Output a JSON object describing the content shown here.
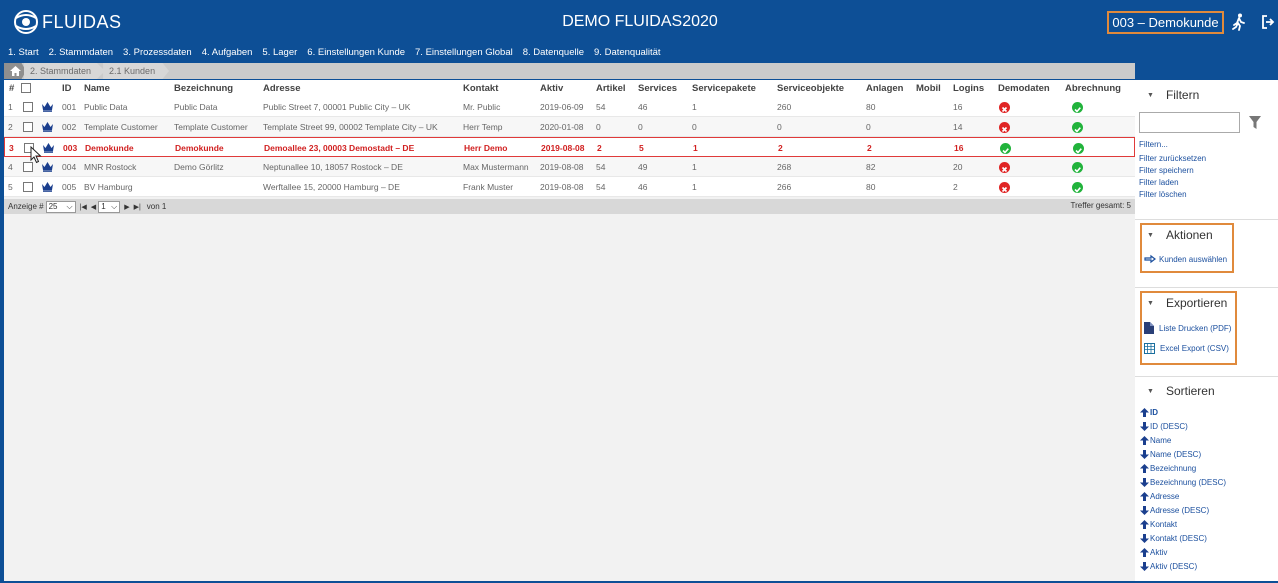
{
  "header": {
    "logo_text": "FLUIDAS",
    "title": "DEMO FLUIDAS2020",
    "customer": "003 – Demokunde"
  },
  "nav": [
    "1. Start",
    "2. Stammdaten",
    "3. Prozessdaten",
    "4. Aufgaben",
    "5. Lager",
    "6. Einstellungen Kunde",
    "7. Einstellungen Global",
    "8. Datenquelle",
    "9. Datenqualität"
  ],
  "breadcrumb": [
    "2. Stammdaten",
    "2.1 Kunden"
  ],
  "table": {
    "columns": [
      "#",
      "ID",
      "Name",
      "Bezeichnung",
      "Adresse",
      "Kontakt",
      "Aktiv",
      "Artikel",
      "Services",
      "Servicepakete",
      "Serviceobjekte",
      "Anlagen",
      "Mobil",
      "Logins",
      "Demodaten",
      "Abrechnung"
    ],
    "rows": [
      {
        "n": "1",
        "id": "001",
        "name": "Public Data",
        "bez": "Public Data",
        "adr": "Public Street 7, 00001 Public City – UK",
        "kontakt": "Mr. Public",
        "aktiv": "2019-06-09",
        "artikel": "54",
        "services": "46",
        "sp": "1",
        "so": "260",
        "anlagen": "80",
        "mobil": "",
        "logins": "16",
        "demo": "no",
        "abr": "yes"
      },
      {
        "n": "2",
        "id": "002",
        "name": "Template Customer",
        "bez": "Template Customer",
        "adr": "Template Street 99, 00002 Template City – UK",
        "kontakt": "Herr Temp",
        "aktiv": "2020-01-08",
        "artikel": "0",
        "services": "0",
        "sp": "0",
        "so": "0",
        "anlagen": "0",
        "mobil": "",
        "logins": "14",
        "demo": "no",
        "abr": "yes"
      },
      {
        "n": "3",
        "id": "003",
        "name": "Demokunde",
        "bez": "Demokunde",
        "adr": "Demoallee 23, 00003 Demostadt – DE",
        "kontakt": "Herr Demo",
        "aktiv": "2019-08-08",
        "artikel": "2",
        "services": "5",
        "sp": "1",
        "so": "2",
        "anlagen": "2",
        "mobil": "",
        "logins": "16",
        "demo": "yes",
        "abr": "yes"
      },
      {
        "n": "4",
        "id": "004",
        "name": "MNR Rostock",
        "bez": "Demo Görlitz",
        "adr": "Neptunallee 10, 18057 Rostock – DE",
        "kontakt": "Max Mustermann",
        "aktiv": "2019-08-08",
        "artikel": "54",
        "services": "49",
        "sp": "1",
        "so": "268",
        "anlagen": "82",
        "mobil": "",
        "logins": "20",
        "demo": "no",
        "abr": "yes"
      },
      {
        "n": "5",
        "id": "005",
        "name": "BV Hamburg",
        "bez": "",
        "adr": "Werftallee 15, 20000 Hamburg – DE",
        "kontakt": "Frank Muster",
        "aktiv": "2019-08-08",
        "artikel": "54",
        "services": "46",
        "sp": "1",
        "so": "266",
        "anlagen": "80",
        "mobil": "",
        "logins": "2",
        "demo": "no",
        "abr": "yes"
      }
    ]
  },
  "pager": {
    "label": "Anzeige #",
    "page_size": "25",
    "page": "1",
    "of": "von 1",
    "hits": "Treffer gesamt: 5"
  },
  "sidebar": {
    "filter_title": "Filtern",
    "filter_links": [
      "Filtern...",
      "Filter zurücksetzen",
      "Filter speichern",
      "Filter laden",
      "Filter löschen"
    ],
    "actions_title": "Aktionen",
    "actions": [
      "Kunden auswählen"
    ],
    "export_title": "Exportieren",
    "exports": [
      "Liste Drucken (PDF)",
      "Excel Export (CSV)"
    ],
    "sort_title": "Sortieren",
    "sorts": [
      {
        "dir": "up",
        "label": "ID",
        "bold": true
      },
      {
        "dir": "down",
        "label": "ID (DESC)"
      },
      {
        "dir": "up",
        "label": "Name"
      },
      {
        "dir": "down",
        "label": "Name (DESC)"
      },
      {
        "dir": "up",
        "label": "Bezeichnung"
      },
      {
        "dir": "down",
        "label": "Bezeichnung (DESC)"
      },
      {
        "dir": "up",
        "label": "Adresse"
      },
      {
        "dir": "down",
        "label": "Adresse (DESC)"
      },
      {
        "dir": "up",
        "label": "Kontakt"
      },
      {
        "dir": "down",
        "label": "Kontakt (DESC)"
      },
      {
        "dir": "up",
        "label": "Aktiv"
      },
      {
        "dir": "down",
        "label": "Aktiv (DESC)"
      }
    ]
  },
  "colors": {
    "brand_blue": "#0d4f96",
    "highlight_orange": "#e08a3c",
    "selected_red": "#d12020",
    "ok_green": "#21b33b",
    "error_red": "#e02424"
  }
}
